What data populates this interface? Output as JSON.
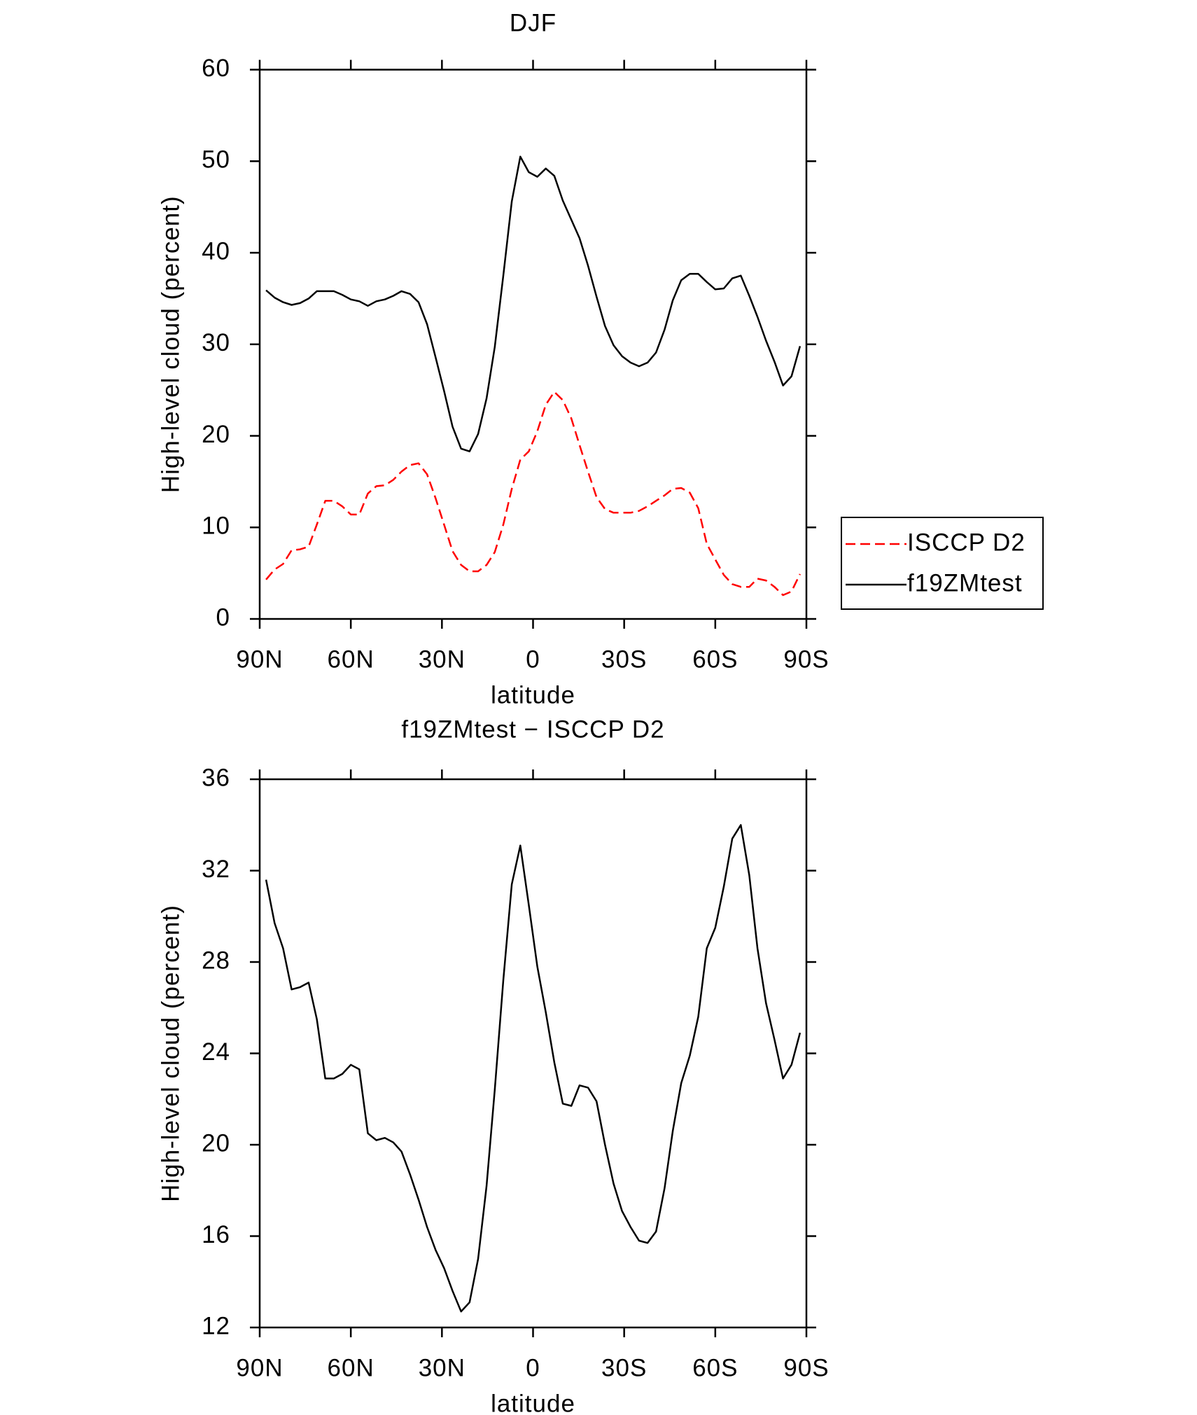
{
  "chart_data": [
    {
      "type": "line",
      "title": "DJF",
      "xlabel": "latitude",
      "ylabel": "High-level cloud (percent)",
      "x": [
        87.9,
        85.1,
        82.3,
        79.5,
        76.7,
        73.9,
        71.2,
        68.4,
        65.6,
        62.8,
        60.0,
        57.2,
        54.4,
        51.6,
        48.8,
        46.0,
        43.3,
        40.5,
        37.7,
        34.9,
        32.1,
        29.3,
        26.5,
        23.7,
        20.9,
        18.1,
        15.3,
        12.6,
        9.8,
        7.0,
        4.2,
        1.4,
        -1.4,
        -4.2,
        -7.0,
        -9.8,
        -12.6,
        -15.3,
        -18.1,
        -20.9,
        -23.7,
        -26.5,
        -29.3,
        -32.1,
        -34.9,
        -37.7,
        -40.5,
        -43.3,
        -46.0,
        -48.8,
        -51.6,
        -54.4,
        -57.2,
        -60.0,
        -62.8,
        -65.6,
        -68.4,
        -71.2,
        -73.9,
        -76.7,
        -79.5,
        -82.3,
        -85.1,
        -87.9
      ],
      "series": [
        {
          "name": "ISCCP D2",
          "color": "#ff0000",
          "line_style": "dashed",
          "values": [
            4.3,
            5.4,
            6.0,
            7.5,
            7.6,
            7.9,
            10.3,
            12.9,
            12.9,
            12.3,
            11.4,
            11.4,
            13.7,
            14.5,
            14.6,
            15.2,
            16.1,
            16.8,
            17.0,
            15.8,
            13.2,
            10.3,
            7.4,
            5.9,
            5.2,
            5.2,
            5.9,
            7.3,
            10.3,
            14.2,
            17.4,
            18.3,
            20.5,
            23.4,
            24.8,
            23.9,
            21.9,
            19.0,
            16.1,
            13.3,
            12.0,
            11.6,
            11.6,
            11.6,
            11.8,
            12.3,
            12.9,
            13.5,
            14.2,
            14.3,
            13.8,
            12.1,
            8.2,
            6.5,
            4.8,
            3.8,
            3.5,
            3.5,
            4.4,
            4.2,
            3.5,
            2.6,
            3.0,
            4.9
          ]
        },
        {
          "name": "f19ZMtest",
          "color": "#000000",
          "line_style": "solid",
          "values": [
            35.9,
            35.1,
            34.6,
            34.3,
            34.5,
            35.0,
            35.8,
            35.8,
            35.8,
            35.4,
            34.9,
            34.7,
            34.2,
            34.7,
            34.9,
            35.3,
            35.8,
            35.5,
            34.6,
            32.2,
            28.6,
            24.9,
            21.0,
            18.6,
            18.3,
            20.2,
            24.1,
            29.7,
            37.5,
            45.6,
            50.5,
            48.8,
            48.3,
            49.2,
            48.4,
            45.7,
            43.6,
            41.6,
            38.6,
            35.2,
            32.0,
            29.9,
            28.7,
            28.0,
            27.6,
            28.0,
            29.1,
            31.6,
            34.8,
            37.0,
            37.7,
            37.7,
            36.8,
            36.0,
            36.1,
            37.2,
            37.5,
            35.3,
            33.0,
            30.4,
            28.1,
            25.5,
            26.5,
            29.8
          ]
        }
      ],
      "xlim": [
        90,
        -90
      ],
      "xticks": [
        {
          "value": 90,
          "label": "90N"
        },
        {
          "value": 60,
          "label": "60N"
        },
        {
          "value": 30,
          "label": "30N"
        },
        0,
        {
          "value": -30,
          "label": "30S"
        },
        {
          "value": -60,
          "label": "60S"
        },
        {
          "value": -90,
          "label": "90S"
        }
      ],
      "ylim": [
        0,
        60
      ],
      "yticks": [
        0,
        10,
        20,
        30,
        40,
        50,
        60
      ],
      "grid": false,
      "legend": "right"
    },
    {
      "type": "line",
      "title": "f19ZMtest − ISCCP D2",
      "xlabel": "latitude",
      "ylabel": "High-level cloud (percent)",
      "x": [
        87.9,
        85.1,
        82.3,
        79.5,
        76.7,
        73.9,
        71.2,
        68.4,
        65.6,
        62.8,
        60.0,
        57.2,
        54.4,
        51.6,
        48.8,
        46.0,
        43.3,
        40.5,
        37.7,
        34.9,
        32.1,
        29.3,
        26.5,
        23.7,
        20.9,
        18.1,
        15.3,
        12.6,
        9.8,
        7.0,
        4.2,
        1.4,
        -1.4,
        -4.2,
        -7.0,
        -9.8,
        -12.6,
        -15.3,
        -18.1,
        -20.9,
        -23.7,
        -26.5,
        -29.3,
        -32.1,
        -34.9,
        -37.7,
        -40.5,
        -43.3,
        -46.0,
        -48.8,
        -51.6,
        -54.4,
        -57.2,
        -60.0,
        -62.8,
        -65.6,
        -68.4,
        -71.2,
        -73.9,
        -76.7,
        -79.5,
        -82.3,
        -85.1,
        -87.9
      ],
      "series": [
        {
          "color": "#000000",
          "line_style": "solid",
          "values": [
            31.6,
            29.7,
            28.6,
            26.8,
            26.9,
            27.1,
            25.5,
            22.9,
            22.9,
            23.1,
            23.5,
            23.3,
            20.5,
            20.2,
            20.3,
            20.1,
            19.7,
            18.7,
            17.6,
            16.4,
            15.4,
            14.6,
            13.6,
            12.7,
            13.1,
            15.0,
            18.2,
            22.4,
            27.2,
            31.4,
            33.1,
            30.5,
            27.8,
            25.8,
            23.6,
            21.8,
            21.7,
            22.6,
            22.5,
            21.9,
            20.0,
            18.3,
            17.1,
            16.4,
            15.8,
            15.7,
            16.2,
            18.1,
            20.6,
            22.7,
            23.9,
            25.6,
            28.6,
            29.5,
            31.3,
            33.4,
            34.0,
            31.8,
            28.6,
            26.2,
            24.6,
            22.9,
            23.5,
            24.9
          ]
        }
      ],
      "xlim": [
        90,
        -90
      ],
      "xticks": [
        {
          "value": 90,
          "label": "90N"
        },
        {
          "value": 60,
          "label": "60N"
        },
        {
          "value": 30,
          "label": "30N"
        },
        0,
        {
          "value": -30,
          "label": "30S"
        },
        {
          "value": -60,
          "label": "60S"
        },
        {
          "value": -90,
          "label": "90S"
        }
      ],
      "ylim": [
        12,
        36
      ],
      "yticks": [
        12,
        16,
        20,
        24,
        28,
        32,
        36
      ],
      "grid": false
    }
  ]
}
